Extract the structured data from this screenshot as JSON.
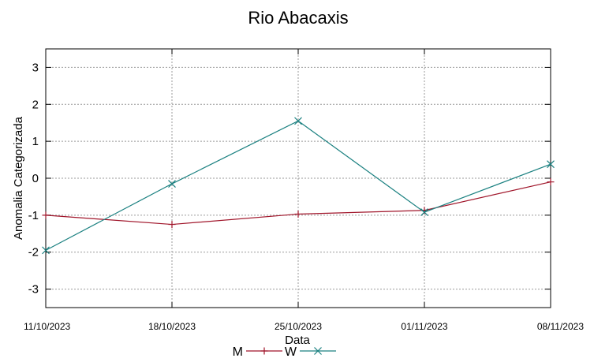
{
  "chart_data": {
    "type": "line",
    "title": "Rio Abacaxis",
    "xlabel": "Data",
    "ylabel": "Anomalia Categorizada",
    "categories": [
      "11/10/2023",
      "18/10/2023",
      "25/10/2023",
      "01/11/2023",
      "08/11/2023"
    ],
    "ylim": [
      -3.5,
      3.5
    ],
    "yticks": [
      "3",
      "2",
      "1",
      "0",
      "-1",
      "-2",
      "-3"
    ],
    "grid": true,
    "legend_position": "bottom-center",
    "series": [
      {
        "name": "M",
        "color": "#a0152a",
        "marker": "+",
        "values": [
          -1.0,
          -1.25,
          -0.97,
          -0.87,
          -0.1
        ]
      },
      {
        "name": "W",
        "color": "#1a8080",
        "marker": "x",
        "values": [
          -1.95,
          -0.15,
          1.55,
          -0.92,
          0.38
        ]
      }
    ]
  }
}
